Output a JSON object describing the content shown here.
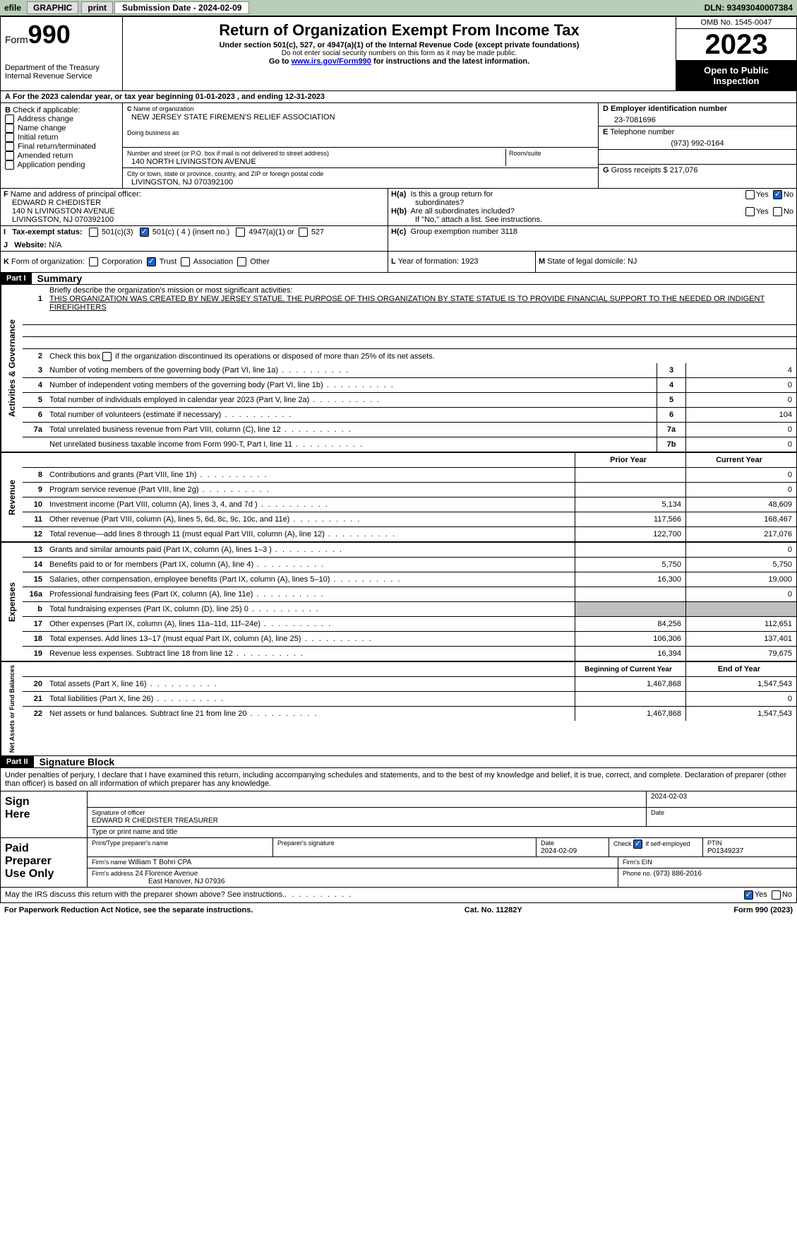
{
  "topbar": {
    "efile": "efile",
    "graphic": "GRAPHIC",
    "print": "print",
    "submission_label": "Submission Date - 2024-02-09",
    "dln_label": "DLN: 93493040007384"
  },
  "header": {
    "form_label": "Form",
    "form_number": "990",
    "dept": "Department of the Treasury",
    "irs": "Internal Revenue Service",
    "title": "Return of Organization Exempt From Income Tax",
    "sub1": "Under section 501(c), 527, or 4947(a)(1) of the Internal Revenue Code (except private foundations)",
    "sub2": "Do not enter social security numbers on this form as it may be made public.",
    "sub3_pre": "Go to ",
    "sub3_link": "www.irs.gov/Form990",
    "sub3_post": " for instructions and the latest information.",
    "omb": "OMB No. 1545-0047",
    "year": "2023",
    "inspect1": "Open to Public",
    "inspect2": "Inspection"
  },
  "section_a": "For the 2023 calendar year, or tax year beginning 01-01-2023   , and ending 12-31-2023",
  "section_b": {
    "label": "Check if applicable:",
    "items": [
      "Address change",
      "Name change",
      "Initial return",
      "Final return/terminated",
      "Amended return",
      "Application pending"
    ],
    "letter": "B"
  },
  "section_c": {
    "letter": "C",
    "name_label": "Name of organization",
    "name": "NEW JERSEY STATE FIREMEN'S RELIEF ASSOCIATION",
    "dba_label": "Doing business as",
    "dba": "",
    "street_label": "Number and street (or P.O. box if mail is not delivered to street address)",
    "street": "140 NORTH LIVINGSTON AVENUE",
    "room_label": "Room/suite",
    "city_label": "City or town, state or province, country, and ZIP or foreign postal code",
    "city": "LIVINGSTON, NJ  070392100"
  },
  "section_d": {
    "letter": "D",
    "label": "Employer identification number",
    "value": "23-7081696"
  },
  "section_e": {
    "letter": "E",
    "label": "Telephone number",
    "value": "(973) 992-0164"
  },
  "section_g": {
    "letter": "G",
    "label": "Gross receipts $",
    "value": "217,076"
  },
  "section_f": {
    "letter": "F",
    "label": "Name and address of principal officer:",
    "name": "EDWARD R CHEDISTER",
    "street": "140 N LIVINGSTON AVENUE",
    "city": "LIVINGSTON, NJ  070392100"
  },
  "section_h": {
    "ha_label": "Is this a group return for",
    "ha_label2": "subordinates?",
    "ha_letter": "H(a)",
    "hb_label": "Are all subordinates included?",
    "hb_letter": "H(b)",
    "hb_note": "If \"No,\" attach a list. See instructions.",
    "hc_letter": "H(c)",
    "hc_label": "Group exemption number  ",
    "hc_value": "3118",
    "yes": "Yes",
    "no": "No"
  },
  "section_i": {
    "letter": "I",
    "label": "Tax-exempt status:",
    "opt1": "501(c)(3)",
    "opt2": "501(c) ( 4 ) (insert no.)",
    "opt3": "4947(a)(1) or",
    "opt4": "527"
  },
  "section_j": {
    "letter": "J",
    "label": "Website: ",
    "value": "N/A"
  },
  "section_k": {
    "letter": "K",
    "label": "Form of organization:",
    "opts": [
      "Corporation",
      "Trust",
      "Association",
      "Other"
    ]
  },
  "section_l": {
    "letter": "L",
    "label": "Year of formation: ",
    "value": "1923"
  },
  "section_m": {
    "letter": "M",
    "label": "State of legal domicile: ",
    "value": "NJ"
  },
  "part1": {
    "header": "Part I",
    "title": "Summary"
  },
  "governance": {
    "vlabel": "Activities & Governance",
    "line1_label": "Briefly describe the organization's mission or most significant activities:",
    "line1_text": "THIS ORGANIZATION WAS CREATED BY NEW JERSEY STATUE. THE PURPOSE OF THIS ORGANIZATION BY STATE STATUE IS TO PROVIDE FINANCIAL SUPPORT TO THE NEEDED OR INDIGENT FIREFIGHTERS",
    "line2": "Check this box       if the organization discontinued its operations or disposed of more than 25% of its net assets.",
    "line3": "Number of voting members of the governing body (Part VI, line 1a)",
    "line4": "Number of independent voting members of the governing body (Part VI, line 1b)",
    "line5": "Total number of individuals employed in calendar year 2023 (Part V, line 2a)",
    "line6": "Total number of volunteers (estimate if necessary)",
    "line7a": "Total unrelated business revenue from Part VIII, column (C), line 12",
    "line7b": "Net unrelated business taxable income from Form 990-T, Part I, line 11",
    "v3": "4",
    "v4": "0",
    "v5": "0",
    "v6": "104",
    "v7a": "0",
    "v7b": "0"
  },
  "revenue": {
    "vlabel": "Revenue",
    "prior_label": "Prior Year",
    "current_label": "Current Year",
    "lines": [
      {
        "n": "8",
        "t": "Contributions and grants (Part VIII, line 1h)",
        "p": "",
        "c": "0"
      },
      {
        "n": "9",
        "t": "Program service revenue (Part VIII, line 2g)",
        "p": "",
        "c": "0"
      },
      {
        "n": "10",
        "t": "Investment income (Part VIII, column (A), lines 3, 4, and 7d )",
        "p": "5,134",
        "c": "48,609"
      },
      {
        "n": "11",
        "t": "Other revenue (Part VIII, column (A), lines 5, 6d, 8c, 9c, 10c, and 11e)",
        "p": "117,566",
        "c": "168,467"
      },
      {
        "n": "12",
        "t": "Total revenue—add lines 8 through 11 (must equal Part VIII, column (A), line 12)",
        "p": "122,700",
        "c": "217,076"
      }
    ]
  },
  "expenses": {
    "vlabel": "Expenses",
    "lines": [
      {
        "n": "13",
        "t": "Grants and similar amounts paid (Part IX, column (A), lines 1–3 )",
        "p": "",
        "c": "0"
      },
      {
        "n": "14",
        "t": "Benefits paid to or for members (Part IX, column (A), line 4)",
        "p": "5,750",
        "c": "5,750"
      },
      {
        "n": "15",
        "t": "Salaries, other compensation, employee benefits (Part IX, column (A), lines 5–10)",
        "p": "16,300",
        "c": "19,000"
      },
      {
        "n": "16a",
        "t": "Professional fundraising fees (Part IX, column (A), line 11e)",
        "p": "",
        "c": "0"
      },
      {
        "n": "b",
        "t": "Total fundraising expenses (Part IX, column (D), line 25) 0",
        "p": "GRAY",
        "c": "GRAY"
      },
      {
        "n": "17",
        "t": "Other expenses (Part IX, column (A), lines 11a–11d, 11f–24e)",
        "p": "84,256",
        "c": "112,651"
      },
      {
        "n": "18",
        "t": "Total expenses. Add lines 13–17 (must equal Part IX, column (A), line 25)",
        "p": "106,306",
        "c": "137,401"
      },
      {
        "n": "19",
        "t": "Revenue less expenses. Subtract line 18 from line 12",
        "p": "16,394",
        "c": "79,675"
      }
    ]
  },
  "netassets": {
    "vlabel": "Net Assets or Fund Balances",
    "begin_label": "Beginning of Current Year",
    "end_label": "End of Year",
    "lines": [
      {
        "n": "20",
        "t": "Total assets (Part X, line 16)",
        "p": "1,467,868",
        "c": "1,547,543"
      },
      {
        "n": "21",
        "t": "Total liabilities (Part X, line 26)",
        "p": "",
        "c": "0"
      },
      {
        "n": "22",
        "t": "Net assets or fund balances. Subtract line 21 from line 20",
        "p": "1,467,868",
        "c": "1,547,543"
      }
    ]
  },
  "part2": {
    "header": "Part II",
    "title": "Signature Block",
    "declaration": "Under penalties of perjury, I declare that I have examined this return, including accompanying schedules and statements, and to the best of my knowledge and belief, it is true, correct, and complete. Declaration of preparer (other than officer) is based on all information of which preparer has any knowledge."
  },
  "sign": {
    "label1": "Sign",
    "label2": "Here",
    "sig_label": "Signature of officer",
    "date": "2024-02-03",
    "date_label": "Date",
    "name": "EDWARD R CHEDISTER  TREASURER",
    "name_label": "Type or print name and title"
  },
  "preparer": {
    "label1": "Paid",
    "label2": "Preparer",
    "label3": "Use Only",
    "h1": "Print/Type preparer's name",
    "h2": "Preparer's signature",
    "h3": "Date",
    "h3v": "2024-02-09",
    "h4": "Check        if self-employed",
    "h5": "PTIN",
    "h5v": "P01349237",
    "firm_name_label": "Firm's name    ",
    "firm_name": "William T Bohri CPA",
    "firm_ein_label": "Firm's EIN  ",
    "firm_addr_label": "Firm's address",
    "firm_addr1": "24 Florence Avenue",
    "firm_addr2": "East Hanover, NJ  07936",
    "phone_label": "Phone no. ",
    "phone": "(973) 886-2016"
  },
  "discuss": {
    "text": "May the IRS discuss this return with the preparer shown above? See instructions.",
    "yes": "Yes",
    "no": "No"
  },
  "footer": {
    "left": "For Paperwork Reduction Act Notice, see the separate instructions.",
    "center": "Cat. No. 11282Y",
    "right": "Form 990 (2023)"
  }
}
